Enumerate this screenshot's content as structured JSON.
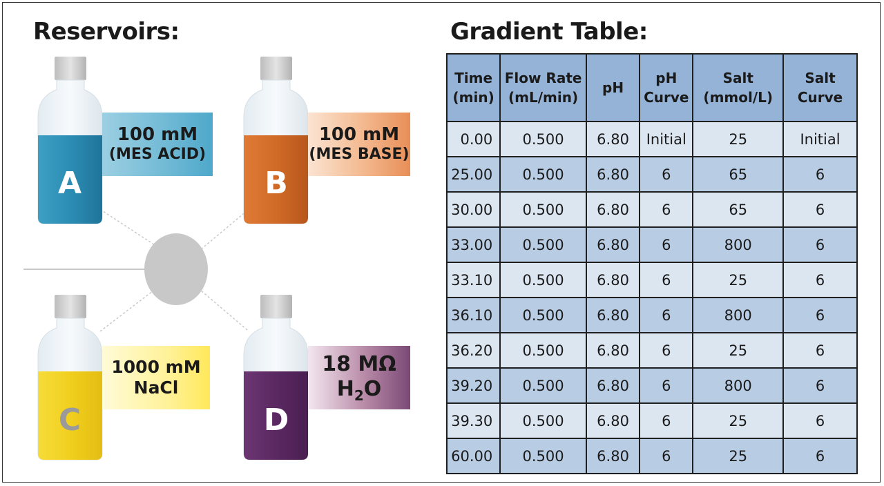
{
  "reservoirs": {
    "title": "Reservoirs:",
    "bottles": [
      {
        "letter": "A",
        "label_line1": "100 mM",
        "label_line2": "(MES ACID)",
        "liquid_color": "#2a8ab0"
      },
      {
        "letter": "B",
        "label_line1": "100 mM",
        "label_line2": "(MES BASE)",
        "liquid_color": "#d46a26"
      },
      {
        "letter": "C",
        "label_line1": "1000 mM",
        "label_line2": "NaCl",
        "liquid_color": "#f2d321"
      },
      {
        "letter": "D",
        "label_line1": "18 MΩ",
        "label_line2": "H",
        "label_line2_sub": "2",
        "label_line2_after": "O",
        "liquid_color": "#5e2a63"
      }
    ]
  },
  "gradient": {
    "title": "Gradient Table:",
    "headers": [
      {
        "line1": "Time",
        "line2": "(min)"
      },
      {
        "line1": "Flow Rate",
        "line2": "(mL/min)"
      },
      {
        "line1": "pH",
        "line2": ""
      },
      {
        "line1": "pH",
        "line2": "Curve"
      },
      {
        "line1": "Salt",
        "line2": "(mmol/L)"
      },
      {
        "line1": "Salt",
        "line2": "Curve"
      }
    ],
    "rows": [
      [
        "0.00",
        "0.500",
        "6.80",
        "Initial",
        "25",
        "Initial"
      ],
      [
        "25.00",
        "0.500",
        "6.80",
        "6",
        "65",
        "6"
      ],
      [
        "30.00",
        "0.500",
        "6.80",
        "6",
        "65",
        "6"
      ],
      [
        "33.00",
        "0.500",
        "6.80",
        "6",
        "800",
        "6"
      ],
      [
        "33.10",
        "0.500",
        "6.80",
        "6",
        "25",
        "6"
      ],
      [
        "36.10",
        "0.500",
        "6.80",
        "6",
        "800",
        "6"
      ],
      [
        "36.20",
        "0.500",
        "6.80",
        "6",
        "25",
        "6"
      ],
      [
        "39.20",
        "0.500",
        "6.80",
        "6",
        "800",
        "6"
      ],
      [
        "39.30",
        "0.500",
        "6.80",
        "6",
        "25",
        "6"
      ],
      [
        "60.00",
        "0.500",
        "6.80",
        "6",
        "25",
        "6"
      ]
    ]
  }
}
